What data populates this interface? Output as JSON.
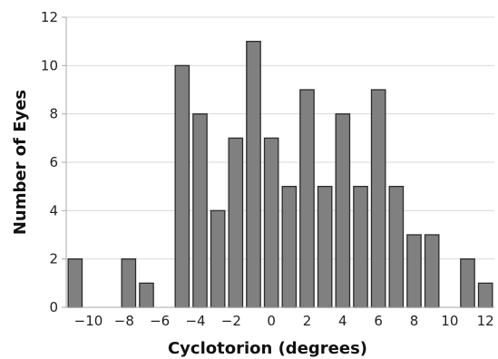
{
  "chart_data": {
    "type": "bar",
    "title": "",
    "xlabel": "Cyclotorion (degrees)",
    "ylabel": "Number of Eyes",
    "x": [
      -11,
      -10,
      -9,
      -8,
      -7,
      -6,
      -5,
      -4,
      -3,
      -2,
      -1,
      0,
      1,
      2,
      3,
      4,
      5,
      6,
      7,
      8,
      9,
      10,
      11,
      12
    ],
    "values": [
      2,
      0,
      0,
      2,
      1,
      0,
      10,
      8,
      4,
      7,
      11,
      7,
      5,
      9,
      5,
      8,
      5,
      9,
      5,
      3,
      3,
      0,
      2,
      1
    ],
    "xlim": [
      -11.5,
      12.5
    ],
    "ylim": [
      0,
      12
    ],
    "x_ticks": [
      -10,
      -8,
      -6,
      -4,
      -2,
      0,
      2,
      4,
      6,
      8,
      10,
      12
    ],
    "x_tick_labels": [
      "−10",
      "−8",
      "−6",
      "−4",
      "−2",
      "0",
      "2",
      "4",
      "6",
      "8",
      "10",
      "12"
    ],
    "y_ticks": [
      0,
      2,
      4,
      6,
      8,
      10,
      12
    ],
    "y_tick_labels": [
      "0",
      "2",
      "4",
      "6",
      "8",
      "10",
      "12"
    ],
    "grid": true,
    "legend": "none",
    "colors": {
      "bar_fill": "#808080",
      "bar_stroke": "#2b2b2b",
      "grid": "#d9d9d9",
      "axis": "#aaaaaa"
    }
  }
}
